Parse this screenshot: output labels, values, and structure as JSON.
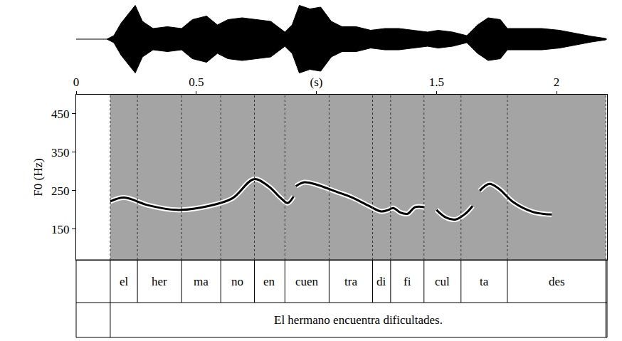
{
  "chart_data": {
    "type": "line",
    "y_label": "F0 (Hz)",
    "xlim": [
      0,
      2.21
    ],
    "xticks": [
      0,
      0.5,
      {
        "value": 1,
        "label": "(s)"
      },
      1.5,
      2
    ],
    "ylim": [
      70,
      500
    ],
    "yticks": [
      150,
      250,
      350,
      450
    ],
    "grid": false,
    "color": "#000000",
    "line_style": "solid",
    "x": [
      0.142,
      0.2,
      0.3,
      0.42,
      0.55,
      0.65,
      0.74,
      0.8,
      0.85,
      0.88,
      0.905,
      0.91,
      0.915,
      0.95,
      1.0,
      1.08,
      1.15,
      1.22,
      1.27,
      1.3,
      1.32,
      1.35,
      1.38,
      1.41,
      1.45,
      1.475,
      1.5,
      1.54,
      1.58,
      1.62,
      1.65,
      1.665,
      1.68,
      1.72,
      1.76,
      1.82,
      1.9,
      1.98
    ],
    "values": [
      222,
      232,
      212,
      200,
      210,
      230,
      280,
      262,
      232,
      218,
      235,
      null,
      262,
      272,
      266,
      248,
      232,
      210,
      196,
      200,
      205,
      193,
      190,
      207,
      207,
      null,
      200,
      180,
      175,
      190,
      210,
      null,
      250,
      268,
      255,
      220,
      195,
      188
    ],
    "waveform": {
      "ylim": [
        -1,
        1
      ],
      "x": [
        0.128,
        0.157,
        0.187,
        0.217,
        0.246,
        0.276,
        0.32,
        0.38,
        0.439,
        0.484,
        0.543,
        0.588,
        0.632,
        0.691,
        0.751,
        0.81,
        0.869,
        0.899,
        0.929,
        0.973,
        1.018,
        1.062,
        1.107,
        1.166,
        1.226,
        1.285,
        1.344,
        1.404,
        1.463,
        1.507,
        1.567,
        1.626,
        1.671,
        1.715,
        1.766,
        1.795,
        1.864,
        1.938,
        2.012,
        2.086,
        2.145,
        2.205
      ],
      "amplitude": [
        0,
        0.1,
        0.45,
        0.7,
        0.95,
        0.5,
        0.3,
        0.35,
        0.3,
        0.55,
        0.65,
        0.4,
        0.55,
        0.6,
        0.55,
        0.5,
        0.2,
        0.4,
        0.95,
        0.85,
        0.9,
        0.5,
        0.35,
        0.35,
        0.25,
        0.3,
        0.3,
        0.25,
        0.2,
        0.25,
        0.2,
        0.1,
        0.4,
        0.6,
        0.55,
        0.3,
        0.3,
        0.3,
        0.25,
        0.15,
        0.08,
        0.02
      ]
    },
    "tiers": [
      {
        "intervals": [
          {
            "start": 0.142,
            "end": 0.255,
            "label": "el"
          },
          {
            "start": 0.255,
            "end": 0.439,
            "label": "her"
          },
          {
            "start": 0.439,
            "end": 0.602,
            "label": "ma"
          },
          {
            "start": 0.602,
            "end": 0.742,
            "label": "no"
          },
          {
            "start": 0.742,
            "end": 0.869,
            "label": "en"
          },
          {
            "start": 0.869,
            "end": 1.053,
            "label": "cuen"
          },
          {
            "start": 1.053,
            "end": 1.234,
            "label": "tra"
          },
          {
            "start": 1.234,
            "end": 1.309,
            "label": "di"
          },
          {
            "start": 1.309,
            "end": 1.448,
            "label": "fi"
          },
          {
            "start": 1.448,
            "end": 1.602,
            "label": "cul"
          },
          {
            "start": 1.602,
            "end": 1.795,
            "label": "ta"
          },
          {
            "start": 1.795,
            "end": 2.205,
            "label": "des"
          }
        ]
      },
      {
        "intervals": [
          {
            "start": 0.142,
            "end": 2.205,
            "label": "El hermano encuentra dificultades."
          }
        ]
      }
    ]
  }
}
